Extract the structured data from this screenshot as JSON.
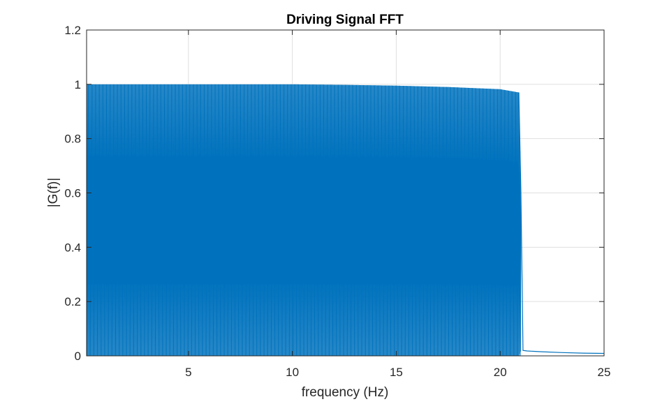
{
  "chart_data": {
    "type": "line",
    "title": "Driving Signal FFT",
    "xlabel": "frequency (Hz)",
    "ylabel": "|G(f)|",
    "xlim": [
      0.1,
      25
    ],
    "ylim": [
      0,
      1.2
    ],
    "xticks": [
      5,
      10,
      15,
      20,
      25
    ],
    "yticks": [
      0,
      0.2,
      0.4,
      0.6,
      0.8,
      1,
      1.2
    ],
    "xtick_labels": [
      "5",
      "10",
      "15",
      "20",
      "25"
    ],
    "ytick_labels": [
      "0",
      "0.2",
      "0.4",
      "0.6",
      "0.8",
      "1",
      "1.2"
    ],
    "grid": true,
    "box": true,
    "colors": {
      "line": "#0072BD",
      "grid": "#DFDFDF",
      "axes": "#262626"
    },
    "series": [
      {
        "description_of_shape": "dense oscillation between 0 and upper envelope",
        "x": [
          0.1,
          2.5,
          5,
          7.5,
          10,
          12.5,
          15,
          17.5,
          20,
          20.9,
          21.0,
          21.1,
          21.3,
          22,
          23,
          24,
          25
        ],
        "y_upper": [
          1.0,
          1.0,
          1.0,
          1.0,
          1.0,
          0.998,
          0.995,
          0.99,
          0.982,
          0.97,
          0.6,
          0.02,
          0.018,
          0.015,
          0.012,
          0.01,
          0.009
        ],
        "y_lower": [
          0.0,
          0.0,
          0.0,
          0.0,
          0.0,
          0.0,
          0.0,
          0.0,
          0.0,
          0.0,
          0.02,
          0.02,
          0.018,
          0.015,
          0.012,
          0.01,
          0.009
        ],
        "oscillation_band_end_hz": 21.0,
        "cycles_per_hz": 24
      }
    ]
  }
}
